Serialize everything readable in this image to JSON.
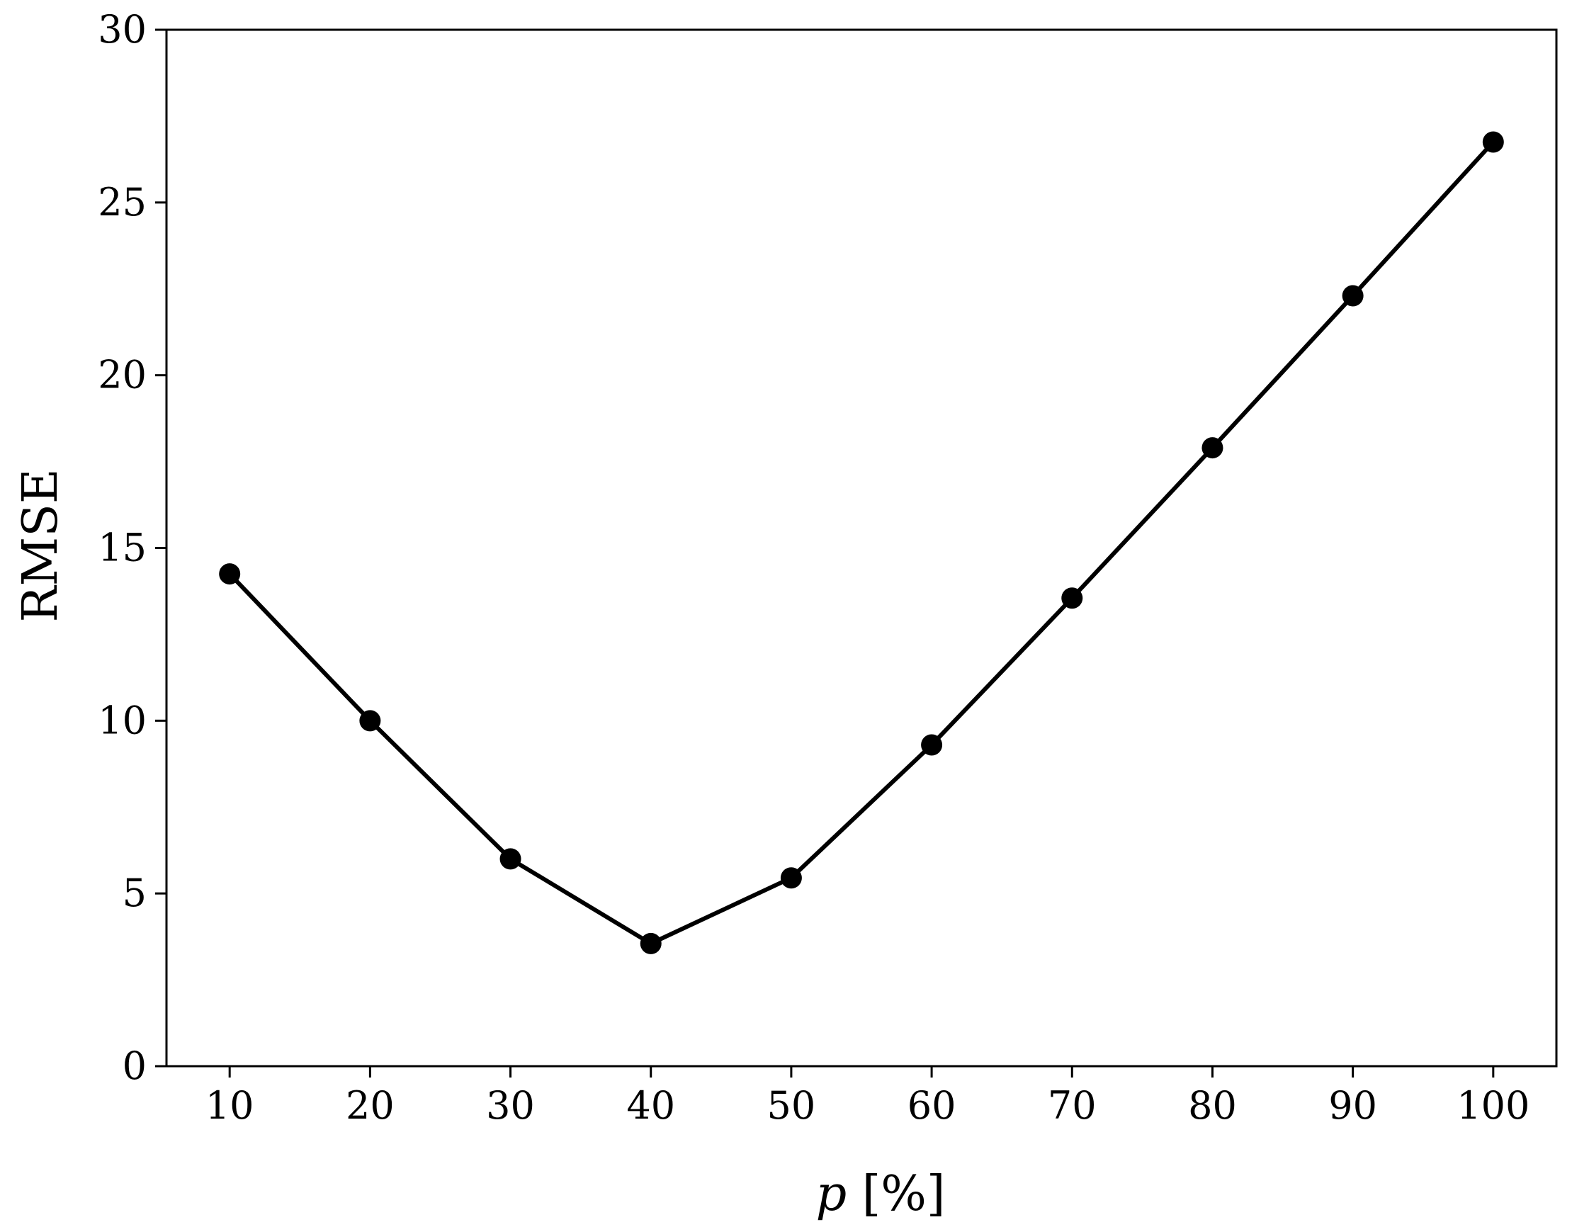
{
  "chart_data": {
    "type": "line",
    "title": "",
    "xlabel_var": "p",
    "xlabel_rest": " [%]",
    "ylabel": "RMSE",
    "x": [
      10,
      20,
      30,
      40,
      50,
      60,
      70,
      80,
      90,
      100
    ],
    "series": [
      {
        "values": [
          14.25,
          10.0,
          6.0,
          3.55,
          5.45,
          9.3,
          13.55,
          17.9,
          22.3,
          26.75
        ],
        "color": "#000000",
        "marker": "circle"
      }
    ],
    "xticks": [
      "10",
      "20",
      "30",
      "40",
      "50",
      "60",
      "70",
      "80",
      "90",
      "100"
    ],
    "yticks": [
      "0",
      "5",
      "10",
      "15",
      "20",
      "25",
      "30"
    ],
    "xlim": [
      5.5,
      104.5
    ],
    "ylim": [
      0,
      30
    ],
    "grid": false,
    "legend": false
  }
}
